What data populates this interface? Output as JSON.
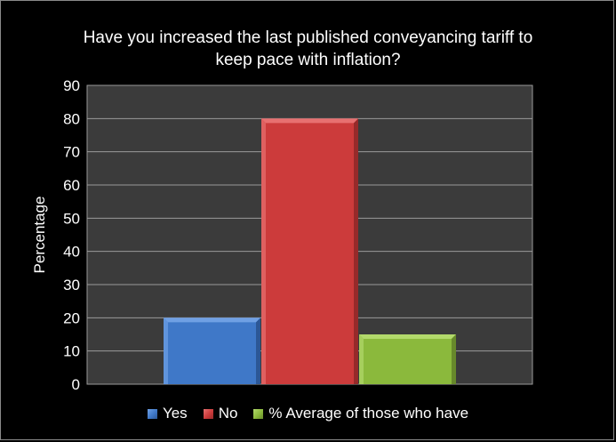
{
  "chart_data": {
    "type": "bar",
    "title_lines": [
      "Have you increased the last published conveyancing tariff to",
      "keep pace with inflation?"
    ],
    "xlabel": "",
    "ylabel": "Percentage",
    "ylim": [
      0,
      90
    ],
    "yticks": [
      "0",
      "10",
      "20",
      "30",
      "40",
      "50",
      "60",
      "70",
      "80",
      "90"
    ],
    "grid": true,
    "legend_position": "bottom",
    "series": [
      {
        "name": "Yes",
        "value": 20,
        "color": "#3f78c8",
        "color_light": "#6fa0e4",
        "color_dark": "#2c5796"
      },
      {
        "name": "No",
        "value": 80,
        "color": "#cc3b3b",
        "color_light": "#e77070",
        "color_dark": "#962a2a"
      },
      {
        "name": "% Average of those who have",
        "value": 15,
        "color": "#8bb93c",
        "color_light": "#b2d96b",
        "color_dark": "#67892b"
      }
    ]
  }
}
